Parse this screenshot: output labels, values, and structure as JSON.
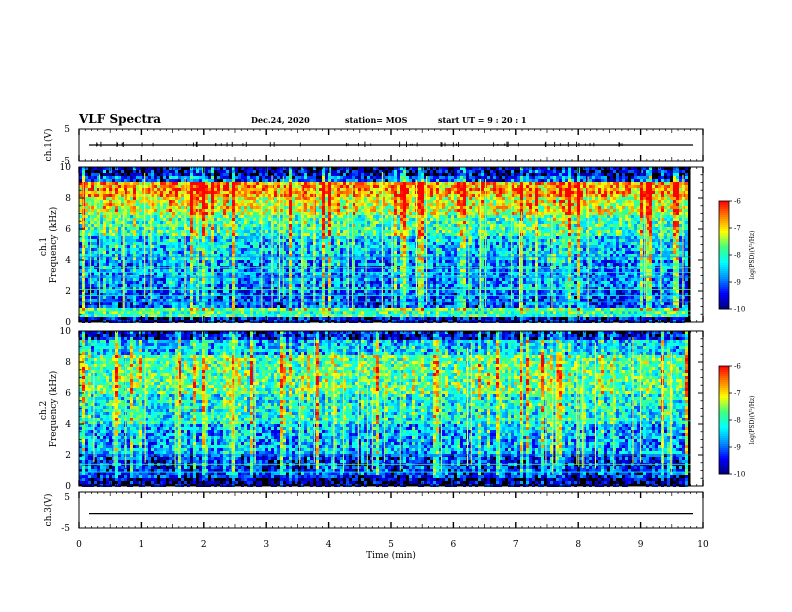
{
  "header": {
    "title": "VLF Spectra",
    "date": "Dec.24, 2020",
    "station": "station= MOS",
    "start": "start  UT =   9 : 20 : 1"
  },
  "colors": {
    "colormap": [
      "#00007a",
      "#0000ff",
      "#0090ff",
      "#00ffff",
      "#40ff80",
      "#ffff00",
      "#ff8000",
      "#ff0000",
      "#ffffff"
    ],
    "background": "#000000",
    "line": "#000000"
  },
  "chart_data": [
    {
      "type": "line",
      "name": "ch.1(V)",
      "ylabel": "ch.1(V)",
      "ylim": [
        -5,
        5
      ],
      "yticks": [
        "5",
        "-5"
      ],
      "xlim": [
        0,
        10
      ],
      "level": 0.0
    },
    {
      "type": "heatmap",
      "name": "ch.1 spectrogram",
      "ylabel": "ch.1\nFrequency (kHz)",
      "ylim": [
        0,
        10
      ],
      "yticks": [
        "0",
        "2",
        "4",
        "6",
        "8",
        "10"
      ],
      "xlim": [
        0,
        10
      ],
      "colorbar": {
        "label": "log(PSD)(V²/Hz)",
        "range": [
          -10,
          -6
        ],
        "ticks": [
          "-6",
          "-7",
          "-8",
          "-9",
          "-10"
        ]
      },
      "bands": [
        {
          "fmin": 0.0,
          "fmax": 0.3,
          "level": -9.6
        },
        {
          "fmin": 0.3,
          "fmax": 0.9,
          "level": -7.9
        },
        {
          "fmin": 0.9,
          "fmax": 2.0,
          "level": -9.2
        },
        {
          "fmin": 2.0,
          "fmax": 4.0,
          "level": -8.9
        },
        {
          "fmin": 4.0,
          "fmax": 5.5,
          "level": -8.6
        },
        {
          "fmin": 5.5,
          "fmax": 7.0,
          "level": -8.0
        },
        {
          "fmin": 7.0,
          "fmax": 8.0,
          "level": -7.3
        },
        {
          "fmin": 8.0,
          "fmax": 9.0,
          "level": -6.8
        },
        {
          "fmin": 9.0,
          "fmax": 9.5,
          "level": -9.3
        },
        {
          "fmin": 9.5,
          "fmax": 10.0,
          "level": -9.8
        }
      ],
      "lines_khz": [
        0.45,
        0.7,
        1.3,
        1.7,
        2.1,
        2.9,
        3.2,
        3.5,
        4.2
      ],
      "data_end_min": 9.8
    },
    {
      "type": "heatmap",
      "name": "ch.2 spectrogram",
      "ylabel": "ch.2\nFrequency (kHz)",
      "ylim": [
        0,
        10
      ],
      "yticks": [
        "0",
        "2",
        "4",
        "6",
        "8",
        "10"
      ],
      "xlim": [
        0,
        10
      ],
      "colorbar": {
        "label": "log(PSD)(V²/Hz)",
        "range": [
          -10,
          -6
        ],
        "ticks": [
          "-6",
          "-7",
          "-8",
          "-9",
          "-10"
        ]
      },
      "bands": [
        {
          "fmin": 0.0,
          "fmax": 0.5,
          "level": -9.9
        },
        {
          "fmin": 0.5,
          "fmax": 2.0,
          "level": -9.4
        },
        {
          "fmin": 2.0,
          "fmax": 4.0,
          "level": -8.8
        },
        {
          "fmin": 4.0,
          "fmax": 6.0,
          "level": -8.3
        },
        {
          "fmin": 6.0,
          "fmax": 8.5,
          "level": -7.9
        },
        {
          "fmin": 8.5,
          "fmax": 9.5,
          "level": -8.6
        },
        {
          "fmin": 9.5,
          "fmax": 10.0,
          "level": -9.6
        }
      ],
      "lines_khz": [
        0.9,
        1.4,
        2.0,
        4.2
      ],
      "data_end_min": 9.8
    },
    {
      "type": "line",
      "name": "ch.3(V)",
      "ylabel": "ch.3(V)",
      "ylim": [
        -5,
        5
      ],
      "yticks": [
        "5",
        "-5"
      ],
      "xlim": [
        0,
        10
      ],
      "level": -1.0
    }
  ],
  "xaxis": {
    "label": "Time  (min)",
    "ticks": [
      "0",
      "1",
      "2",
      "3",
      "4",
      "5",
      "6",
      "7",
      "8",
      "9",
      "10"
    ]
  }
}
